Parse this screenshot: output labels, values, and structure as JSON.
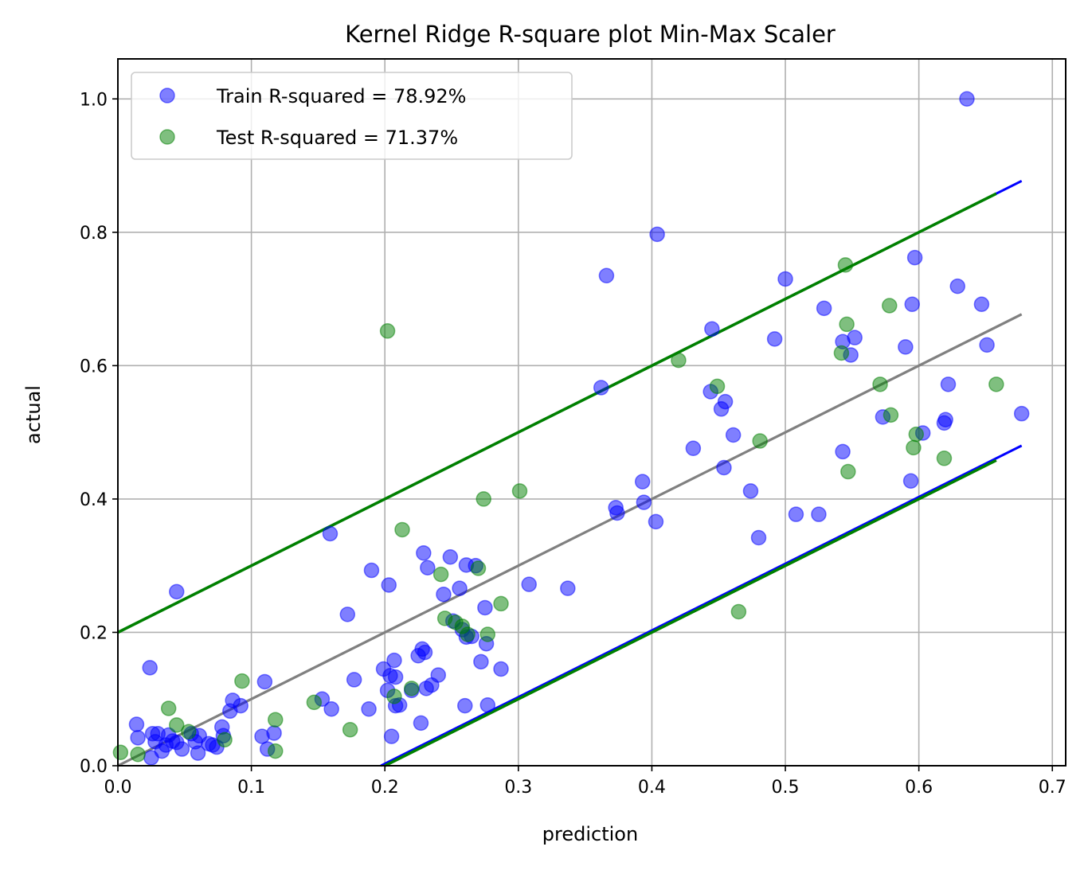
{
  "chart_data": {
    "type": "scatter",
    "title": "Kernel Ridge R-square plot Min-Max Scaler",
    "xlabel": "prediction",
    "ylabel": "actual",
    "xlim": [
      0.0,
      0.71
    ],
    "ylim": [
      0.0,
      1.06
    ],
    "xticks": [
      0.0,
      0.1,
      0.2,
      0.3,
      0.4,
      0.5,
      0.6,
      0.7
    ],
    "xtick_labels": [
      "0.0",
      "0.1",
      "0.2",
      "0.3",
      "0.4",
      "0.5",
      "0.6",
      "0.7"
    ],
    "yticks": [
      0.0,
      0.2,
      0.4,
      0.6,
      0.8,
      1.0
    ],
    "ytick_labels": [
      "0.0",
      "0.2",
      "0.4",
      "0.6",
      "0.8",
      "1.0"
    ],
    "grid": true,
    "legend_position": "upper-left",
    "series": [
      {
        "name": "Train R-squared = 78.92%",
        "color": "#0000ff",
        "alpha": 0.5,
        "points": [
          [
            0.014,
            0.062
          ],
          [
            0.015,
            0.042
          ],
          [
            0.024,
            0.147
          ],
          [
            0.025,
            0.012
          ],
          [
            0.026,
            0.048
          ],
          [
            0.028,
            0.036
          ],
          [
            0.03,
            0.048
          ],
          [
            0.033,
            0.022
          ],
          [
            0.036,
            0.031
          ],
          [
            0.038,
            0.046
          ],
          [
            0.041,
            0.037
          ],
          [
            0.044,
            0.035
          ],
          [
            0.044,
            0.261
          ],
          [
            0.048,
            0.025
          ],
          [
            0.055,
            0.048
          ],
          [
            0.058,
            0.036
          ],
          [
            0.06,
            0.019
          ],
          [
            0.061,
            0.045
          ],
          [
            0.068,
            0.033
          ],
          [
            0.071,
            0.031
          ],
          [
            0.074,
            0.028
          ],
          [
            0.078,
            0.058
          ],
          [
            0.079,
            0.045
          ],
          [
            0.084,
            0.082
          ],
          [
            0.086,
            0.098
          ],
          [
            0.092,
            0.09
          ],
          [
            0.108,
            0.044
          ],
          [
            0.11,
            0.126
          ],
          [
            0.112,
            0.025
          ],
          [
            0.117,
            0.049
          ],
          [
            0.153,
            0.1
          ],
          [
            0.159,
            0.348
          ],
          [
            0.16,
            0.085
          ],
          [
            0.172,
            0.227
          ],
          [
            0.177,
            0.129
          ],
          [
            0.188,
            0.085
          ],
          [
            0.19,
            0.293
          ],
          [
            0.199,
            0.145
          ],
          [
            0.202,
            0.113
          ],
          [
            0.203,
            0.271
          ],
          [
            0.204,
            0.135
          ],
          [
            0.205,
            0.044
          ],
          [
            0.207,
            0.158
          ],
          [
            0.208,
            0.133
          ],
          [
            0.208,
            0.09
          ],
          [
            0.211,
            0.091
          ],
          [
            0.22,
            0.113
          ],
          [
            0.225,
            0.165
          ],
          [
            0.227,
            0.064
          ],
          [
            0.228,
            0.175
          ],
          [
            0.229,
            0.319
          ],
          [
            0.23,
            0.17
          ],
          [
            0.231,
            0.116
          ],
          [
            0.232,
            0.297
          ],
          [
            0.235,
            0.121
          ],
          [
            0.24,
            0.136
          ],
          [
            0.244,
            0.257
          ],
          [
            0.249,
            0.313
          ],
          [
            0.251,
            0.217
          ],
          [
            0.256,
            0.266
          ],
          [
            0.258,
            0.204
          ],
          [
            0.26,
            0.09
          ],
          [
            0.261,
            0.193
          ],
          [
            0.261,
            0.301
          ],
          [
            0.265,
            0.194
          ],
          [
            0.268,
            0.3
          ],
          [
            0.272,
            0.156
          ],
          [
            0.275,
            0.237
          ],
          [
            0.276,
            0.183
          ],
          [
            0.277,
            0.091
          ],
          [
            0.287,
            0.145
          ],
          [
            0.308,
            0.272
          ],
          [
            0.337,
            0.266
          ],
          [
            0.362,
            0.567
          ],
          [
            0.366,
            0.735
          ],
          [
            0.373,
            0.387
          ],
          [
            0.374,
            0.379
          ],
          [
            0.393,
            0.426
          ],
          [
            0.394,
            0.395
          ],
          [
            0.403,
            0.366
          ],
          [
            0.404,
            0.797
          ],
          [
            0.431,
            0.476
          ],
          [
            0.444,
            0.561
          ],
          [
            0.445,
            0.655
          ],
          [
            0.452,
            0.535
          ],
          [
            0.454,
            0.447
          ],
          [
            0.455,
            0.546
          ],
          [
            0.461,
            0.496
          ],
          [
            0.474,
            0.412
          ],
          [
            0.48,
            0.342
          ],
          [
            0.492,
            0.64
          ],
          [
            0.5,
            0.73
          ],
          [
            0.508,
            0.377
          ],
          [
            0.525,
            0.377
          ],
          [
            0.529,
            0.686
          ],
          [
            0.543,
            0.471
          ],
          [
            0.543,
            0.636
          ],
          [
            0.549,
            0.616
          ],
          [
            0.552,
            0.642
          ],
          [
            0.573,
            0.523
          ],
          [
            0.59,
            0.628
          ],
          [
            0.594,
            0.427
          ],
          [
            0.595,
            0.692
          ],
          [
            0.597,
            0.762
          ],
          [
            0.603,
            0.499
          ],
          [
            0.619,
            0.514
          ],
          [
            0.62,
            0.519
          ],
          [
            0.622,
            0.572
          ],
          [
            0.629,
            0.719
          ],
          [
            0.636,
            1.0
          ],
          [
            0.647,
            0.692
          ],
          [
            0.651,
            0.631
          ],
          [
            0.677,
            0.528
          ]
        ],
        "band_upper": [
          [
            0.0,
            0.2
          ],
          [
            0.677,
            0.877
          ]
        ],
        "band_lower": [
          [
            0.197,
            0.0
          ],
          [
            0.677,
            0.48
          ]
        ]
      },
      {
        "name": "Test R-squared = 71.37%",
        "color": "#008000",
        "alpha": 0.5,
        "points": [
          [
            0.002,
            0.02
          ],
          [
            0.015,
            0.017
          ],
          [
            0.038,
            0.086
          ],
          [
            0.044,
            0.061
          ],
          [
            0.053,
            0.051
          ],
          [
            0.08,
            0.039
          ],
          [
            0.093,
            0.127
          ],
          [
            0.118,
            0.069
          ],
          [
            0.118,
            0.022
          ],
          [
            0.147,
            0.095
          ],
          [
            0.174,
            0.054
          ],
          [
            0.202,
            0.652
          ],
          [
            0.207,
            0.104
          ],
          [
            0.213,
            0.354
          ],
          [
            0.22,
            0.116
          ],
          [
            0.242,
            0.287
          ],
          [
            0.245,
            0.221
          ],
          [
            0.253,
            0.215
          ],
          [
            0.258,
            0.209
          ],
          [
            0.262,
            0.197
          ],
          [
            0.27,
            0.296
          ],
          [
            0.274,
            0.4
          ],
          [
            0.277,
            0.197
          ],
          [
            0.287,
            0.243
          ],
          [
            0.301,
            0.412
          ],
          [
            0.42,
            0.608
          ],
          [
            0.449,
            0.569
          ],
          [
            0.465,
            0.231
          ],
          [
            0.481,
            0.487
          ],
          [
            0.542,
            0.619
          ],
          [
            0.545,
            0.751
          ],
          [
            0.546,
            0.662
          ],
          [
            0.547,
            0.441
          ],
          [
            0.571,
            0.572
          ],
          [
            0.578,
            0.69
          ],
          [
            0.579,
            0.526
          ],
          [
            0.596,
            0.477
          ],
          [
            0.598,
            0.497
          ],
          [
            0.619,
            0.461
          ],
          [
            0.658,
            0.572
          ]
        ],
        "band_upper": [
          [
            0.0,
            0.2
          ],
          [
            0.658,
            0.858
          ]
        ],
        "band_lower": [
          [
            0.2,
            0.0
          ],
          [
            0.658,
            0.458
          ]
        ]
      }
    ],
    "reference_line": {
      "points": [
        [
          0.0,
          0.0
        ],
        [
          0.677,
          0.677
        ]
      ],
      "color": "#808080"
    }
  }
}
